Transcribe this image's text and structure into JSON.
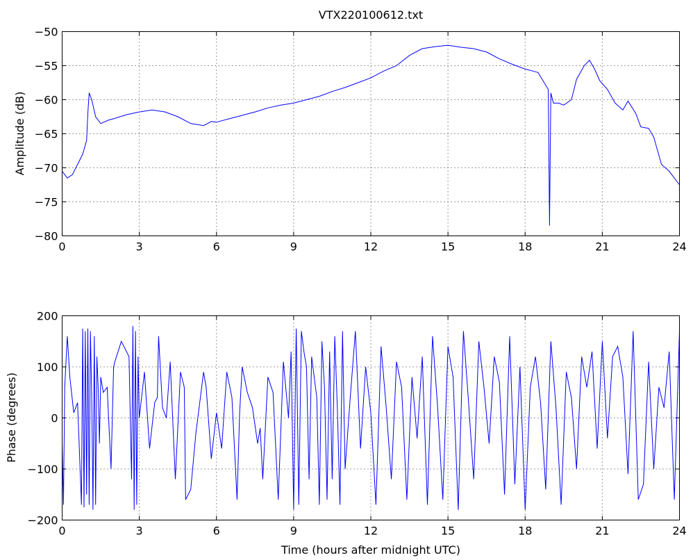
{
  "chart_data": [
    {
      "type": "line",
      "title": "VTX220100612.txt",
      "xlabel": "",
      "ylabel": "Amplitude (dB)",
      "xlim": [
        0,
        24
      ],
      "ylim": [
        -80,
        -50
      ],
      "xticks": [
        0,
        3,
        6,
        9,
        12,
        15,
        18,
        21,
        24
      ],
      "yticks": [
        -80,
        -75,
        -70,
        -65,
        -60,
        -55,
        -50
      ],
      "xtick_labels": [
        "0",
        "3",
        "6",
        "9",
        "12",
        "15",
        "18",
        "21",
        "24"
      ],
      "ytick_labels": [
        "−80",
        "−75",
        "−70",
        "−65",
        "−60",
        "−55",
        "−50"
      ],
      "grid": true,
      "color": "#0000ff",
      "series": [
        {
          "x": [
            0,
            0.2,
            0.4,
            0.6,
            0.8,
            0.95,
            1.0,
            1.05,
            1.15,
            1.3,
            1.5,
            1.8,
            2.0,
            2.5,
            3.0,
            3.5,
            4.0,
            4.5,
            5.0,
            5.5,
            5.8,
            6.0,
            6.5,
            7.0,
            7.5,
            8.0,
            8.5,
            9.0,
            9.5,
            10.0,
            10.5,
            11.0,
            11.5,
            12.0,
            12.5,
            13.0,
            13.5,
            14.0,
            14.5,
            15.0,
            15.5,
            16.0,
            16.5,
            17.0,
            17.5,
            18.0,
            18.3,
            18.5,
            18.9,
            18.95,
            19.0,
            19.1,
            19.3,
            19.5,
            19.8,
            20.0,
            20.3,
            20.5,
            20.7,
            20.9,
            21.2,
            21.5,
            21.8,
            22.0,
            22.3,
            22.5,
            22.8,
            23.0,
            23.3,
            23.6,
            24.0
          ],
          "y": [
            -70.5,
            -71.5,
            -71,
            -69.5,
            -68,
            -66,
            -62,
            -59,
            -60,
            -62.5,
            -63.5,
            -63,
            -62.8,
            -62.2,
            -61.8,
            -61.5,
            -61.8,
            -62.5,
            -63.5,
            -63.8,
            -63.2,
            -63.3,
            -62.8,
            -62.3,
            -61.8,
            -61.2,
            -60.8,
            -60.5,
            -60,
            -59.5,
            -58.8,
            -58.2,
            -57.5,
            -56.8,
            -55.8,
            -55,
            -53.5,
            -52.5,
            -52.2,
            -52,
            -52.3,
            -52.5,
            -53,
            -54,
            -54.8,
            -55.5,
            -55.8,
            -56,
            -58.5,
            -78.5,
            -59,
            -60.5,
            -60.5,
            -60.8,
            -60,
            -57,
            -55,
            -54.2,
            -55.5,
            -57.2,
            -58.5,
            -60.5,
            -61.5,
            -60.2,
            -62,
            -64,
            -64.2,
            -65.5,
            -69.5,
            -70.5,
            -72.5
          ]
        }
      ]
    },
    {
      "type": "line",
      "title": "",
      "xlabel": "Time (hours after midnight UTC)",
      "ylabel": "Phase (degrees)",
      "xlim": [
        0,
        24
      ],
      "ylim": [
        -200,
        200
      ],
      "xticks": [
        0,
        3,
        6,
        9,
        12,
        15,
        18,
        21,
        24
      ],
      "yticks": [
        -200,
        -100,
        0,
        100,
        200
      ],
      "xtick_labels": [
        "0",
        "3",
        "6",
        "9",
        "12",
        "15",
        "18",
        "21",
        "24"
      ],
      "ytick_labels": [
        "−200",
        "−100",
        "0",
        "100",
        "200"
      ],
      "grid": true,
      "color": "#0000ff",
      "series": [
        {
          "x": [
            0,
            0.05,
            0.1,
            0.2,
            0.3,
            0.45,
            0.6,
            0.75,
            0.8,
            0.85,
            0.9,
            0.95,
            1.0,
            1.05,
            1.1,
            1.15,
            1.2,
            1.25,
            1.3,
            1.35,
            1.4,
            1.45,
            1.5,
            1.6,
            1.75,
            1.9,
            2.0,
            2.05,
            2.3,
            2.6,
            2.7,
            2.75,
            2.8,
            2.85,
            2.9,
            2.95,
            3.0,
            3.2,
            3.4,
            3.6,
            3.7,
            3.75,
            3.9,
            4.05,
            4.2,
            4.4,
            4.6,
            4.75,
            4.8,
            5.0,
            5.2,
            5.4,
            5.5,
            5.6,
            5.8,
            6.0,
            6.2,
            6.4,
            6.6,
            6.8,
            6.9,
            7.0,
            7.2,
            7.4,
            7.6,
            7.7,
            7.8,
            8.0,
            8.2,
            8.4,
            8.6,
            8.8,
            8.9,
            9.0,
            9.1,
            9.2,
            9.3,
            9.4,
            9.5,
            9.6,
            9.7,
            9.8,
            9.9,
            10.0,
            10.1,
            10.2,
            10.3,
            10.4,
            10.5,
            10.6,
            10.7,
            10.8,
            10.9,
            11.0,
            11.2,
            11.4,
            11.6,
            11.8,
            12.0,
            12.2,
            12.4,
            12.6,
            12.8,
            13.0,
            13.2,
            13.4,
            13.6,
            13.8,
            14.0,
            14.2,
            14.4,
            14.6,
            14.8,
            15.0,
            15.2,
            15.4,
            15.6,
            15.8,
            16.0,
            16.2,
            16.4,
            16.6,
            16.8,
            17.0,
            17.2,
            17.4,
            17.6,
            17.8,
            18.0,
            18.2,
            18.4,
            18.6,
            18.8,
            19.0,
            19.2,
            19.4,
            19.6,
            19.8,
            20.0,
            20.2,
            20.4,
            20.6,
            20.8,
            21.0,
            21.2,
            21.4,
            21.6,
            21.8,
            22.0,
            22.2,
            22.4,
            22.6,
            22.8,
            23.0,
            23.2,
            23.4,
            23.6,
            23.8,
            24.0
          ],
          "y": [
            -50,
            -170,
            60,
            160,
            80,
            10,
            30,
            -170,
            175,
            -175,
            170,
            -150,
            175,
            -170,
            170,
            40,
            -180,
            160,
            -170,
            120,
            60,
            -50,
            80,
            50,
            60,
            -100,
            100,
            110,
            150,
            120,
            -120,
            180,
            -180,
            170,
            -170,
            120,
            0,
            90,
            -60,
            30,
            40,
            160,
            20,
            0,
            110,
            -120,
            90,
            60,
            -160,
            -140,
            -30,
            50,
            90,
            60,
            -80,
            10,
            -60,
            90,
            40,
            -160,
            10,
            100,
            50,
            20,
            -50,
            -20,
            -120,
            80,
            50,
            -160,
            110,
            0,
            130,
            -180,
            175,
            -170,
            170,
            130,
            100,
            -120,
            120,
            80,
            40,
            -170,
            150,
            60,
            -160,
            130,
            -120,
            160,
            20,
            -170,
            170,
            -100,
            40,
            170,
            -60,
            100,
            10,
            -170,
            140,
            20,
            -120,
            110,
            60,
            -160,
            80,
            -40,
            120,
            -170,
            160,
            20,
            -160,
            140,
            80,
            -180,
            170,
            30,
            -120,
            150,
            60,
            -50,
            120,
            70,
            -150,
            160,
            -130,
            100,
            -180,
            60,
            120,
            30,
            -140,
            150,
            20,
            -170,
            90,
            40,
            -100,
            120,
            60,
            130,
            -60,
            150,
            -40,
            120,
            140,
            80,
            -110,
            170,
            -160,
            -130,
            110,
            -100,
            60,
            20,
            130,
            -160,
            170
          ]
        }
      ]
    }
  ]
}
